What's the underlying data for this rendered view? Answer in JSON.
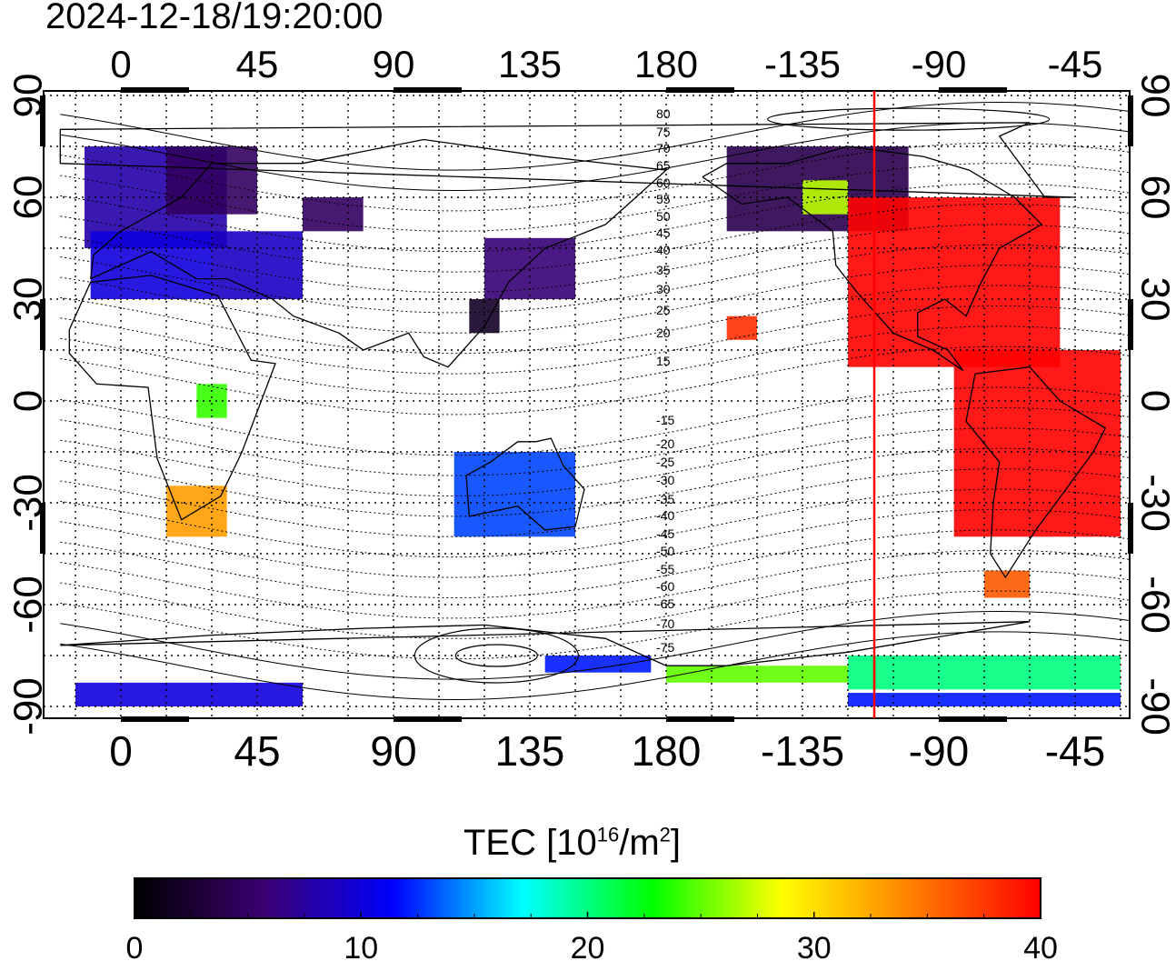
{
  "title": "2024-12-18/19:20:00",
  "map": {
    "lon_ticks_top": [
      "0",
      "45",
      "90",
      "135",
      "180",
      "-135",
      "-90",
      "-45"
    ],
    "lon_ticks_bottom": [
      "0",
      "45",
      "90",
      "135",
      "180",
      "-135",
      "-90",
      "-45"
    ],
    "lat_ticks_left": [
      "90",
      "60",
      "30",
      "0",
      "-30",
      "-60",
      "-90"
    ],
    "lat_ticks_right": [
      "90",
      "60",
      "30",
      "0",
      "-30",
      "-60",
      "-90"
    ],
    "contour_labels_north": [
      "80",
      "75",
      "70",
      "65",
      "60",
      "55",
      "50",
      "45",
      "40",
      "35",
      "30",
      "25",
      "20",
      "15"
    ],
    "contour_labels_south": [
      "-15",
      "-20",
      "-25",
      "-30",
      "-35",
      "-40",
      "-45",
      "-50",
      "-55",
      "-60",
      "-65",
      "-70",
      "-75"
    ],
    "terminator_color": "#ff0000",
    "grid": "dotted"
  },
  "colorbar": {
    "label_main": "TEC  [10",
    "label_exp1": "16",
    "label_mid": "/m",
    "label_exp2": "2",
    "label_end": "]",
    "ticks": [
      "0",
      "10",
      "20",
      "30",
      "40"
    ],
    "range": [
      0,
      40
    ],
    "colors": [
      "#000000",
      "#3a0070",
      "#0000ff",
      "#00ffff",
      "#00ff00",
      "#ffff00",
      "#ff8000",
      "#ff0000"
    ]
  }
}
